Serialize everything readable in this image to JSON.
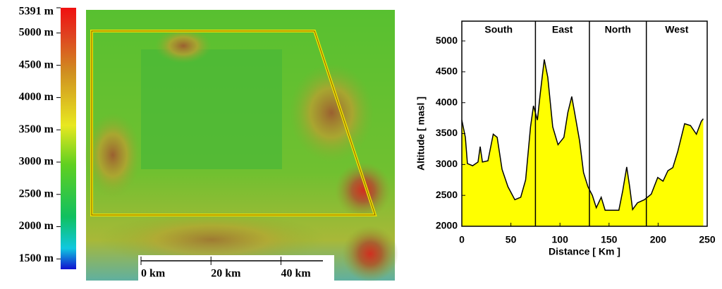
{
  "colorbar": {
    "lim": [
      1340,
      5391
    ],
    "ticks": [
      {
        "value": 5391,
        "label": "5391 m"
      },
      {
        "value": 5000,
        "label": "5000 m"
      },
      {
        "value": 4500,
        "label": "4500 m"
      },
      {
        "value": 4000,
        "label": "4000 m"
      },
      {
        "value": 3500,
        "label": "3500 m"
      },
      {
        "value": 3000,
        "label": "3000 m"
      },
      {
        "value": 2500,
        "label": "2500 m"
      },
      {
        "value": 2000,
        "label": "2000 m"
      },
      {
        "value": 1500,
        "label": "1500 m"
      }
    ]
  },
  "scale_bar": {
    "lim": [
      0,
      52
    ],
    "ticks": [
      {
        "value": 0,
        "label": "0 km"
      },
      {
        "value": 20,
        "label": "20 km"
      },
      {
        "value": 40,
        "label": "40 km"
      }
    ]
  },
  "chart_data": {
    "type": "area",
    "x": [
      0,
      3.6,
      5.7,
      11,
      16.5,
      18.7,
      21,
      26.6,
      32,
      36,
      41,
      47,
      54,
      60,
      65,
      70,
      73,
      77,
      79.7,
      84,
      87.6,
      92.6,
      98,
      104,
      108,
      112,
      115.6,
      120,
      124,
      128.5,
      133,
      137,
      142,
      146,
      151,
      160,
      164,
      168,
      171,
      174,
      179,
      186,
      193,
      199.6,
      205,
      210,
      215,
      220,
      227,
      233,
      239,
      244,
      246
    ],
    "values": [
      3720,
      3440,
      3015,
      2980,
      3040,
      3290,
      3040,
      3060,
      3490,
      3440,
      2920,
      2640,
      2430,
      2470,
      2750,
      3610,
      3950,
      3720,
      4120,
      4700,
      4410,
      3610,
      3320,
      3440,
      3840,
      4100,
      3780,
      3380,
      2870,
      2640,
      2500,
      2300,
      2470,
      2260,
      2260,
      2260,
      2580,
      2960,
      2640,
      2270,
      2380,
      2430,
      2520,
      2790,
      2730,
      2900,
      2950,
      3210,
      3660,
      3630,
      3490,
      3700,
      3740
    ],
    "color": "#ffff00",
    "xlabel": "Distance [ Km ]",
    "ylabel": "Altitude [ masl ]",
    "xlim": [
      0,
      250
    ],
    "ylim": [
      2000,
      5320
    ],
    "xticks": [
      0,
      50,
      100,
      150,
      200,
      250
    ],
    "yticks": [
      2000,
      2500,
      3000,
      3500,
      4000,
      4500,
      5000
    ],
    "sections": [
      "South",
      "East",
      "North",
      "West"
    ],
    "dividers": [
      75,
      130,
      188
    ]
  }
}
